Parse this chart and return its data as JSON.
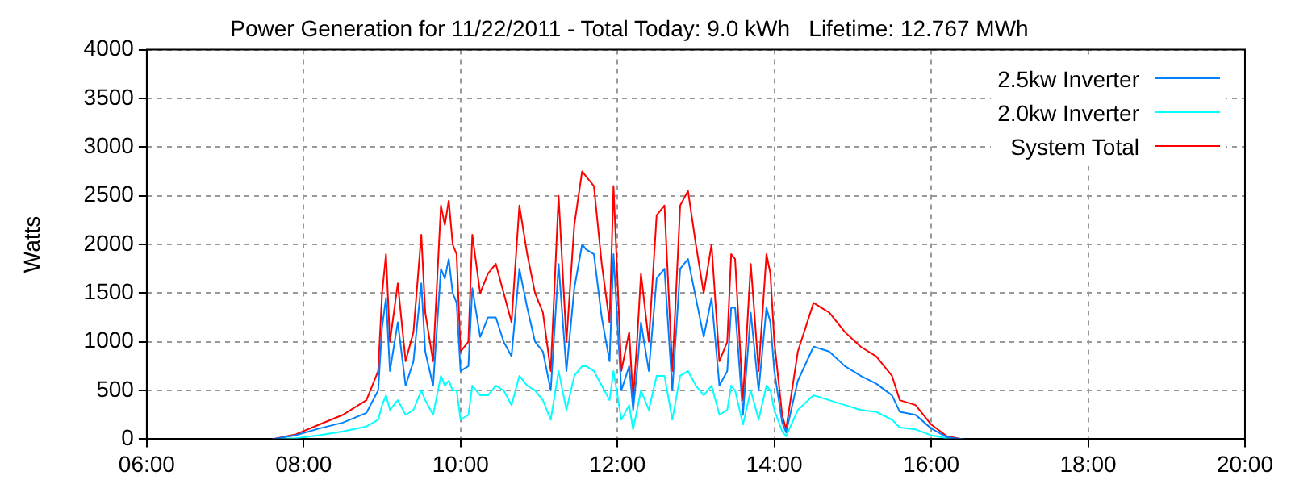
{
  "chart_data": {
    "type": "line",
    "title": "Power Generation for 11/22/2011 - Total Today: 9.0 kWh   Lifetime: 12.767 MWh",
    "ylabel": "Watts",
    "x": [
      7.6,
      7.9,
      8.2,
      8.5,
      8.8,
      8.95,
      9.0,
      9.05,
      9.1,
      9.2,
      9.3,
      9.4,
      9.5,
      9.55,
      9.65,
      9.75,
      9.8,
      9.85,
      9.9,
      9.95,
      10.0,
      10.1,
      10.15,
      10.25,
      10.35,
      10.45,
      10.55,
      10.65,
      10.75,
      10.85,
      10.95,
      11.05,
      11.15,
      11.25,
      11.35,
      11.45,
      11.55,
      11.6,
      11.7,
      11.8,
      11.9,
      11.95,
      12.05,
      12.15,
      12.2,
      12.25,
      12.3,
      12.4,
      12.5,
      12.6,
      12.7,
      12.8,
      12.9,
      13.0,
      13.1,
      13.2,
      13.3,
      13.4,
      13.45,
      13.5,
      13.6,
      13.7,
      13.8,
      13.9,
      13.95,
      14.0,
      14.1,
      14.15,
      14.3,
      14.5,
      14.7,
      14.9,
      15.1,
      15.3,
      15.5,
      15.6,
      15.8,
      16.0,
      16.2,
      16.4
    ],
    "series": [
      {
        "name": "2.5kw Inverter",
        "color": "#0080ff",
        "values": [
          0,
          40,
          110,
          170,
          270,
          500,
          1150,
          1450,
          700,
          1200,
          550,
          800,
          1600,
          900,
          550,
          1750,
          1650,
          1850,
          1500,
          1400,
          700,
          750,
          1550,
          1050,
          1250,
          1250,
          1000,
          850,
          1750,
          1350,
          1000,
          900,
          500,
          1800,
          700,
          1550,
          2000,
          1950,
          1900,
          1250,
          800,
          1900,
          500,
          750,
          300,
          700,
          1200,
          700,
          1650,
          1750,
          500,
          1750,
          1850,
          1450,
          1050,
          1450,
          550,
          700,
          1350,
          1350,
          250,
          1300,
          500,
          1350,
          1200,
          700,
          170,
          70,
          600,
          950,
          900,
          750,
          650,
          570,
          450,
          280,
          250,
          110,
          20,
          0
        ]
      },
      {
        "name": "2.0kw Inverter",
        "color": "#00ffff",
        "values": [
          0,
          10,
          40,
          80,
          130,
          200,
          350,
          450,
          300,
          400,
          250,
          300,
          500,
          400,
          250,
          650,
          550,
          600,
          500,
          500,
          200,
          250,
          550,
          450,
          450,
          550,
          500,
          350,
          650,
          550,
          500,
          400,
          200,
          700,
          300,
          650,
          750,
          750,
          700,
          550,
          400,
          700,
          200,
          350,
          100,
          300,
          500,
          300,
          650,
          650,
          200,
          650,
          700,
          550,
          450,
          550,
          250,
          300,
          550,
          500,
          150,
          500,
          200,
          550,
          500,
          300,
          80,
          30,
          300,
          450,
          400,
          350,
          300,
          280,
          200,
          120,
          100,
          40,
          10,
          0
        ]
      },
      {
        "name": "System Total",
        "color": "#ff0000",
        "values": [
          0,
          50,
          150,
          250,
          400,
          700,
          1500,
          1900,
          1000,
          1600,
          800,
          1100,
          2100,
          1300,
          800,
          2400,
          2200,
          2450,
          2000,
          1900,
          900,
          1000,
          2100,
          1500,
          1700,
          1800,
          1500,
          1200,
          2400,
          1900,
          1500,
          1300,
          700,
          2500,
          1000,
          2200,
          2750,
          2700,
          2600,
          1800,
          1200,
          2600,
          700,
          1100,
          400,
          1000,
          1700,
          1000,
          2300,
          2400,
          700,
          2400,
          2550,
          2000,
          1500,
          2000,
          800,
          1000,
          1900,
          1850,
          400,
          1800,
          700,
          1900,
          1700,
          1000,
          250,
          100,
          900,
          1400,
          1300,
          1100,
          950,
          850,
          650,
          400,
          350,
          150,
          30,
          0
        ]
      }
    ],
    "xlim": [
      6,
      20
    ],
    "xticks": [
      {
        "value": 6,
        "label": "06:00"
      },
      {
        "value": 8,
        "label": "08:00"
      },
      {
        "value": 10,
        "label": "10:00"
      },
      {
        "value": 12,
        "label": "12:00"
      },
      {
        "value": 14,
        "label": "14:00"
      },
      {
        "value": 16,
        "label": "16:00"
      },
      {
        "value": 18,
        "label": "18:00"
      },
      {
        "value": 20,
        "label": "20:00"
      }
    ],
    "ylim": [
      0,
      4000
    ],
    "yticks": [
      0,
      500,
      1000,
      1500,
      2000,
      2500,
      3000,
      3500,
      4000
    ],
    "grid": true,
    "legend": "top right",
    "marker": "none",
    "line_style": "solid"
  }
}
